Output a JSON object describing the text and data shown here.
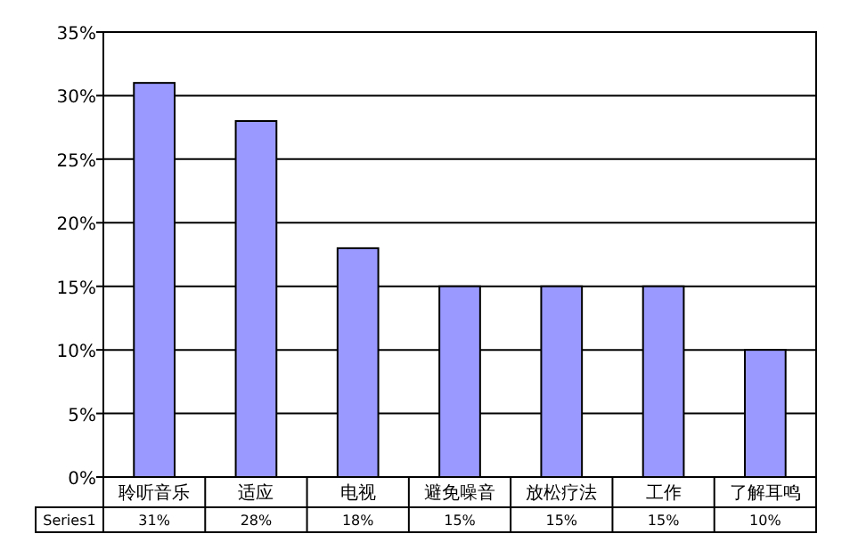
{
  "chart_data": {
    "type": "bar",
    "categories": [
      "聆听音乐",
      "适应",
      "电视",
      "避免噪音",
      "放松疗法",
      "工作",
      "了解耳鸣"
    ],
    "series": [
      {
        "name": "Series1",
        "color": "#9999ff",
        "values": [
          31,
          28,
          18,
          15,
          15,
          15,
          10
        ],
        "value_labels": [
          "31%",
          "28%",
          "18%",
          "15%",
          "15%",
          "15%",
          "10%"
        ]
      }
    ],
    "ylim": [
      0,
      35
    ],
    "yticks": [
      {
        "value": 0,
        "label": "0%"
      },
      {
        "value": 5,
        "label": "5%"
      },
      {
        "value": 10,
        "label": "10%"
      },
      {
        "value": 15,
        "label": "15%"
      },
      {
        "value": 20,
        "label": "20%"
      },
      {
        "value": 25,
        "label": "25%"
      },
      {
        "value": 30,
        "label": "30%"
      },
      {
        "value": 35,
        "label": "35%"
      }
    ],
    "grid": "y"
  }
}
